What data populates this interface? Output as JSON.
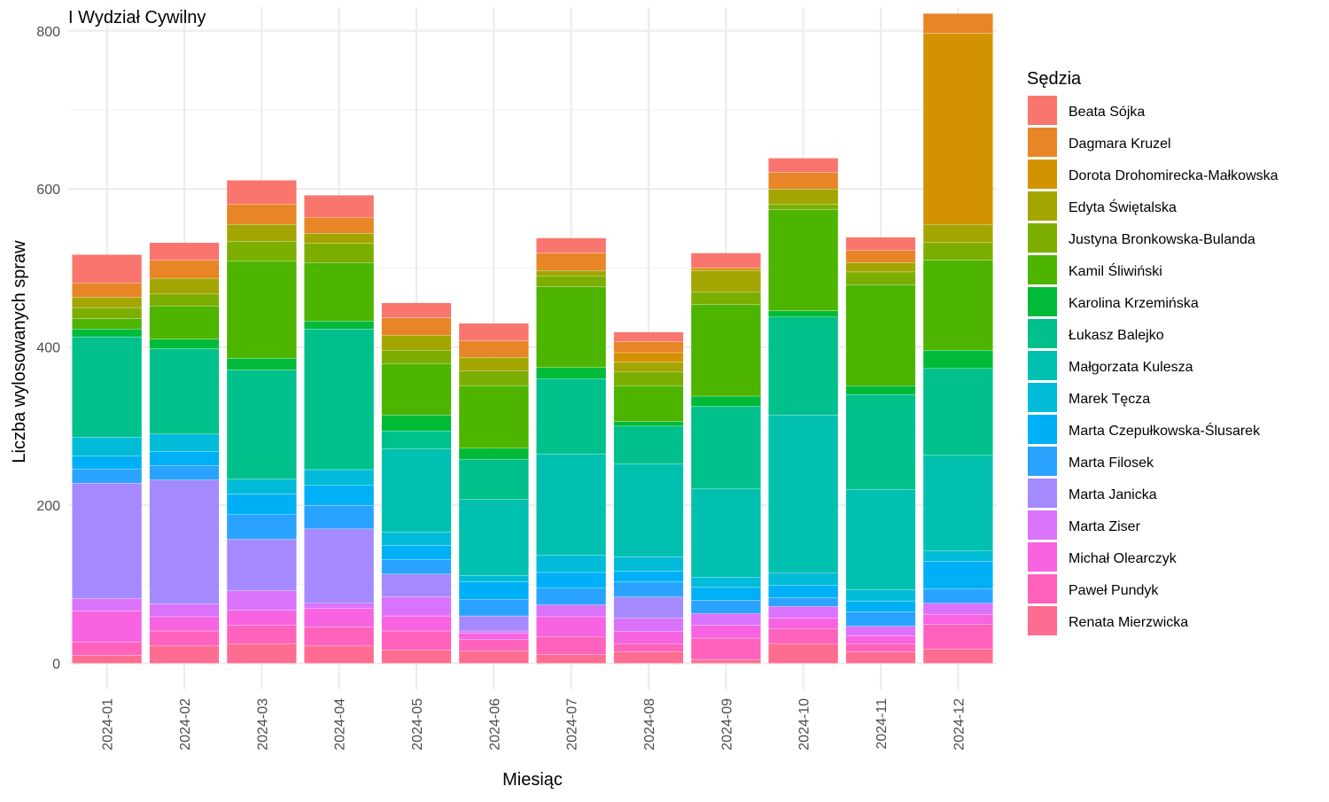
{
  "chart_data": {
    "type": "bar",
    "stacked": true,
    "title": "I Wydział Cywilny",
    "xlabel": "Miesiąc",
    "ylabel": "Liczba wylosowanych spraw",
    "ylim": [
      -33,
      830
    ],
    "yticks": [
      0,
      200,
      400,
      600,
      800
    ],
    "grid": true,
    "legend_position": "right",
    "legend_title": "Sędzia",
    "categories": [
      "2024-01",
      "2024-02",
      "2024-03",
      "2024-04",
      "2024-05",
      "2024-06",
      "2024-07",
      "2024-08",
      "2024-09",
      "2024-10",
      "2024-11",
      "2024-12"
    ],
    "series": [
      {
        "name": "Renata Mierzwicka",
        "color": "#FF6C91",
        "values": [
          10,
          22,
          25,
          22,
          17,
          16,
          11,
          15,
          5,
          25,
          15,
          18
        ]
      },
      {
        "name": "Paweł Pundyk",
        "color": "#FF62BC",
        "values": [
          17,
          19,
          23,
          24,
          24,
          14,
          23,
          10,
          27,
          19,
          10,
          31
        ]
      },
      {
        "name": "Michał Olearczyk",
        "color": "#F763E0",
        "values": [
          39,
          18,
          19,
          24,
          19,
          8,
          25,
          15,
          16,
          13,
          10,
          13
        ]
      },
      {
        "name": "Marta Ziser",
        "color": "#DB72FB",
        "values": [
          16,
          16,
          25,
          6,
          24,
          3,
          15,
          17,
          15,
          15,
          12,
          14
        ]
      },
      {
        "name": "Marta Janicka",
        "color": "#A58AFF",
        "values": [
          146,
          157,
          65,
          94,
          29,
          19,
          0,
          27,
          0,
          0,
          0,
          0
        ]
      },
      {
        "name": "Marta Filosek",
        "color": "#29A3FF",
        "values": [
          18,
          18,
          31,
          30,
          18,
          21,
          21,
          19,
          17,
          11,
          18,
          18
        ]
      },
      {
        "name": "Marta Czepułkowska-Ślusarek",
        "color": "#00B0F6",
        "values": [
          16,
          18,
          26,
          25,
          18,
          22,
          20,
          14,
          16,
          16,
          14,
          35
        ]
      },
      {
        "name": "Marek Tęcza",
        "color": "#00BCD8",
        "values": [
          24,
          22,
          19,
          20,
          17,
          8,
          22,
          18,
          13,
          15,
          14,
          13
        ]
      },
      {
        "name": "Małgorzata Kulesza",
        "color": "#00C0AF",
        "values": [
          0,
          0,
          0,
          0,
          105,
          96,
          128,
          117,
          112,
          200,
          127,
          121
        ]
      },
      {
        "name": "Łukasz Balejko",
        "color": "#00C08B",
        "values": [
          127,
          108,
          138,
          178,
          23,
          51,
          95,
          48,
          104,
          124,
          120,
          110
        ]
      },
      {
        "name": "Karolina Krzemińska",
        "color": "#00BA38",
        "values": [
          10,
          12,
          15,
          10,
          20,
          14,
          14,
          6,
          13,
          8,
          11,
          23
        ]
      },
      {
        "name": "Kamil Śliwiński",
        "color": "#4DB400",
        "values": [
          13,
          42,
          123,
          74,
          65,
          79,
          102,
          45,
          116,
          128,
          128,
          114
        ]
      },
      {
        "name": "Justyna Bronkowska-Bulanda",
        "color": "#7CAE00",
        "values": [
          14,
          15,
          25,
          24,
          17,
          19,
          14,
          18,
          16,
          7,
          16,
          22
        ]
      },
      {
        "name": "Edyta Świętalska",
        "color": "#A3A500",
        "values": [
          13,
          20,
          21,
          13,
          19,
          17,
          7,
          12,
          27,
          19,
          12,
          23
        ]
      },
      {
        "name": "Dorota Drohomirecka-Małkowska",
        "color": "#D39200",
        "values": [
          0,
          0,
          0,
          0,
          0,
          0,
          0,
          12,
          3,
          0,
          0,
          242
        ]
      },
      {
        "name": "Dagmara Kruzel",
        "color": "#E88526",
        "values": [
          18,
          23,
          26,
          20,
          22,
          21,
          22,
          14,
          0,
          21,
          15,
          25
        ]
      },
      {
        "name": "Beata Sójka",
        "color": "#F8766D",
        "values": [
          36,
          22,
          30,
          28,
          19,
          22,
          19,
          12,
          19,
          18,
          17,
          0
        ]
      }
    ]
  }
}
